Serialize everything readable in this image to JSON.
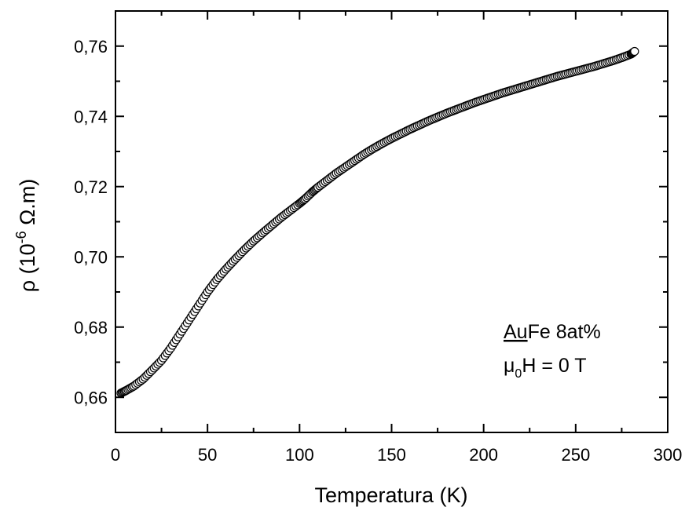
{
  "chart_data": {
    "type": "scatter",
    "xlabel": "Temperatura (K)",
    "ylabel": {
      "prefix": "ρ (10",
      "exponent": "-6",
      "suffix": " Ω.m)"
    },
    "xlim": [
      0,
      300
    ],
    "ylim": [
      0.65,
      0.77
    ],
    "x_ticks": [
      0,
      50,
      100,
      150,
      200,
      250,
      300
    ],
    "x_tick_labels": [
      "0",
      "50",
      "100",
      "150",
      "200",
      "250",
      "300"
    ],
    "y_ticks": [
      0.66,
      0.68,
      0.7,
      0.72,
      0.74,
      0.76
    ],
    "y_tick_labels": [
      "0,66",
      "0,68",
      "0,70",
      "0,72",
      "0,74",
      "0,76"
    ],
    "grid": false,
    "marker": "open-circle",
    "series": [
      {
        "x": [
          3,
          6,
          10,
          15,
          20,
          25,
          30,
          35,
          40,
          45,
          50,
          55,
          60,
          65,
          70,
          75,
          80,
          85,
          90,
          95,
          100,
          103,
          107,
          110,
          115,
          120,
          125,
          130,
          135,
          140,
          145,
          150,
          155,
          160,
          165,
          170,
          175,
          180,
          185,
          190,
          195,
          200,
          205,
          210,
          215,
          220,
          225,
          230,
          235,
          240,
          245,
          250,
          255,
          260,
          265,
          270,
          275,
          280,
          282
        ],
        "y": [
          0.6612,
          0.662,
          0.6632,
          0.6652,
          0.6678,
          0.6705,
          0.674,
          0.678,
          0.682,
          0.686,
          0.69,
          0.6935,
          0.6965,
          0.6993,
          0.702,
          0.7045,
          0.7068,
          0.709,
          0.7112,
          0.7132,
          0.7152,
          0.7165,
          0.7185,
          0.7198,
          0.7218,
          0.7238,
          0.7256,
          0.7274,
          0.7292,
          0.7308,
          0.7323,
          0.7337,
          0.735,
          0.7363,
          0.7375,
          0.7387,
          0.7398,
          0.7409,
          0.7419,
          0.7429,
          0.7439,
          0.7448,
          0.7457,
          0.7466,
          0.7474,
          0.7482,
          0.749,
          0.7498,
          0.7506,
          0.7514,
          0.7521,
          0.7528,
          0.7535,
          0.7542,
          0.755,
          0.7558,
          0.7567,
          0.7577,
          0.7585
        ]
      }
    ],
    "annotations": [
      {
        "underlined": "Au",
        "rest": "Fe 8at%"
      },
      {
        "mu": "μ",
        "sub": "0",
        "rest": "H = 0 T"
      }
    ]
  }
}
